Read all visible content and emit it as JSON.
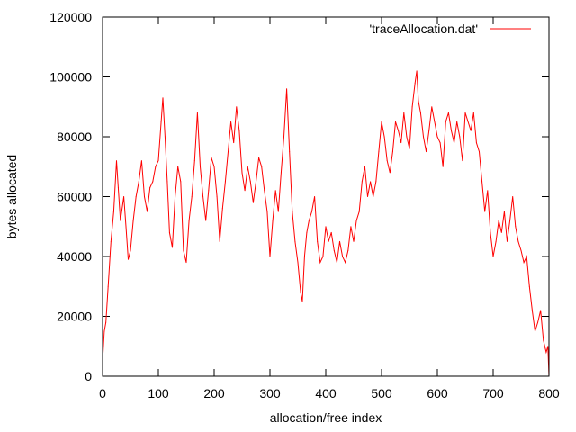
{
  "chart_data": {
    "type": "line",
    "title": "",
    "xlabel": "allocation/free index",
    "ylabel": "bytes allocated",
    "xlim": [
      0,
      800
    ],
    "ylim": [
      0,
      120000
    ],
    "xticks": [
      0,
      100,
      200,
      300,
      400,
      500,
      600,
      700,
      800
    ],
    "yticks": [
      0,
      20000,
      40000,
      60000,
      80000,
      100000,
      120000
    ],
    "grid": false,
    "legend": "top-right",
    "series": [
      {
        "name": "'traceAllocation.dat'",
        "color": "#ff0000",
        "x": [
          0,
          3,
          6,
          10,
          15,
          20,
          25,
          28,
          32,
          38,
          42,
          46,
          50,
          55,
          60,
          65,
          70,
          75,
          80,
          85,
          90,
          95,
          100,
          105,
          108,
          112,
          116,
          120,
          125,
          130,
          135,
          140,
          145,
          150,
          155,
          160,
          165,
          170,
          175,
          180,
          185,
          190,
          195,
          200,
          205,
          210,
          215,
          220,
          225,
          230,
          235,
          240,
          245,
          250,
          255,
          260,
          265,
          270,
          275,
          280,
          285,
          290,
          295,
          300,
          305,
          310,
          315,
          320,
          325,
          330,
          335,
          340,
          345,
          350,
          355,
          358,
          362,
          366,
          370,
          375,
          380,
          385,
          390,
          395,
          400,
          405,
          410,
          415,
          420,
          425,
          430,
          435,
          440,
          445,
          450,
          455,
          460,
          465,
          470,
          475,
          480,
          485,
          490,
          495,
          500,
          505,
          510,
          515,
          520,
          525,
          530,
          535,
          540,
          545,
          550,
          555,
          560,
          563,
          566,
          570,
          575,
          580,
          585,
          590,
          595,
          600,
          605,
          610,
          615,
          620,
          625,
          630,
          635,
          640,
          645,
          650,
          655,
          660,
          665,
          670,
          675,
          680,
          685,
          690,
          695,
          700,
          705,
          710,
          715,
          720,
          725,
          730,
          735,
          740,
          745,
          750,
          755,
          760,
          765,
          770,
          775,
          780,
          785,
          790,
          795,
          798,
          800
        ],
        "values": [
          5000,
          15000,
          18000,
          30000,
          45000,
          55000,
          72000,
          63000,
          52000,
          60000,
          50000,
          39000,
          42000,
          52000,
          60000,
          65000,
          72000,
          60000,
          55000,
          63000,
          65000,
          70000,
          72000,
          85000,
          93000,
          80000,
          65000,
          48000,
          43000,
          60000,
          70000,
          65000,
          42000,
          38000,
          52000,
          60000,
          72000,
          88000,
          70000,
          60000,
          52000,
          62000,
          73000,
          70000,
          60000,
          45000,
          56000,
          65000,
          75000,
          85000,
          78000,
          90000,
          82000,
          68000,
          62000,
          70000,
          65000,
          58000,
          65000,
          73000,
          70000,
          62000,
          55000,
          40000,
          52000,
          62000,
          55000,
          68000,
          80000,
          96000,
          75000,
          55000,
          45000,
          38000,
          28000,
          25000,
          40000,
          48000,
          52000,
          55000,
          60000,
          45000,
          38000,
          40000,
          50000,
          45000,
          48000,
          42000,
          38000,
          45000,
          40000,
          38000,
          42000,
          50000,
          45000,
          52000,
          55000,
          65000,
          70000,
          60000,
          65000,
          60000,
          65000,
          75000,
          85000,
          80000,
          72000,
          68000,
          75000,
          85000,
          82000,
          78000,
          88000,
          80000,
          76000,
          90000,
          98000,
          102000,
          92000,
          88000,
          80000,
          75000,
          82000,
          90000,
          85000,
          80000,
          78000,
          70000,
          85000,
          88000,
          82000,
          78000,
          85000,
          80000,
          72000,
          88000,
          85000,
          82000,
          88000,
          78000,
          75000,
          65000,
          55000,
          62000,
          48000,
          40000,
          45000,
          52000,
          48000,
          55000,
          45000,
          52000,
          60000,
          50000,
          45000,
          42000,
          38000,
          40000,
          30000,
          22000,
          15000,
          18000,
          22000,
          12000,
          8000,
          10000,
          0
        ]
      }
    ]
  }
}
